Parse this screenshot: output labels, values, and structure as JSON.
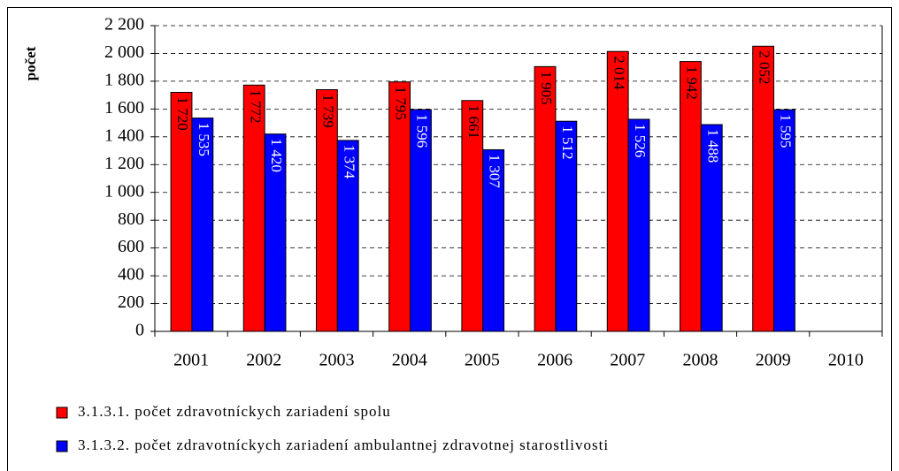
{
  "chart_data": {
    "type": "bar",
    "y_label": "počet",
    "categories": [
      "2001",
      "2002",
      "2003",
      "2004",
      "2005",
      "2006",
      "2007",
      "2008",
      "2009",
      "2010"
    ],
    "series": [
      {
        "name": "3.1.3.1. počet zdravotníckych zariadení spolu",
        "color": "#ff0000",
        "values": [
          1720,
          1772,
          1739,
          1795,
          1661,
          1905,
          2014,
          1942,
          2052,
          null
        ],
        "value_labels": [
          "1 720",
          "1 772",
          "1 739",
          "1 795",
          "1 661",
          "1 905",
          "2 014",
          "1 942",
          "2 052",
          null
        ]
      },
      {
        "name": "3.1.3.2. počet zdravotníckych zariadení ambulantnej zdravotnej starostlivosti",
        "color": "#0000ff",
        "values": [
          1535,
          1420,
          1374,
          1596,
          1307,
          1512,
          1526,
          1488,
          1595,
          null
        ],
        "value_labels": [
          "1 535",
          "1 420",
          "1 374",
          "1 596",
          "1 307",
          "1 512",
          "1 526",
          "1 488",
          "1 595",
          null
        ]
      }
    ],
    "ylim": [
      0,
      2200
    ],
    "yticks": [
      0,
      200,
      400,
      600,
      800,
      {
        "value": 1000,
        "label": "1 000"
      },
      {
        "value": 1200,
        "label": "1 200"
      },
      {
        "value": 1400,
        "label": "1 400"
      },
      {
        "value": 1600,
        "label": "1 600"
      },
      {
        "value": 1800,
        "label": "1 800"
      },
      {
        "value": 2000,
        "label": "2 000"
      },
      {
        "value": 2200,
        "label": "2 200"
      }
    ],
    "grid": true
  }
}
